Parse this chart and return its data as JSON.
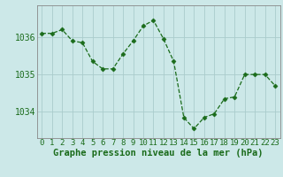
{
  "hours": [
    0,
    1,
    2,
    3,
    4,
    5,
    6,
    7,
    8,
    9,
    10,
    11,
    12,
    13,
    14,
    15,
    16,
    17,
    18,
    19,
    20,
    21,
    22,
    23
  ],
  "pressure": [
    1036.1,
    1036.1,
    1036.2,
    1035.9,
    1035.85,
    1035.35,
    1035.15,
    1035.15,
    1035.55,
    1035.9,
    1036.3,
    1036.45,
    1035.95,
    1035.35,
    1033.85,
    1033.55,
    1033.85,
    1033.95,
    1034.35,
    1034.4,
    1035.0,
    1035.0,
    1035.0,
    1034.7
  ],
  "line_color": "#1a6b1a",
  "marker": "D",
  "marker_size": 2.5,
  "bg_color": "#cce8e8",
  "grid_color": "#aacccc",
  "ylabel_ticks": [
    1034,
    1035,
    1036
  ],
  "ylim": [
    1033.3,
    1036.85
  ],
  "xlabel": "Graphe pression niveau de la mer (hPa)",
  "xlabel_fontsize": 7.5,
  "tick_fontsize": 6.5,
  "title": ""
}
